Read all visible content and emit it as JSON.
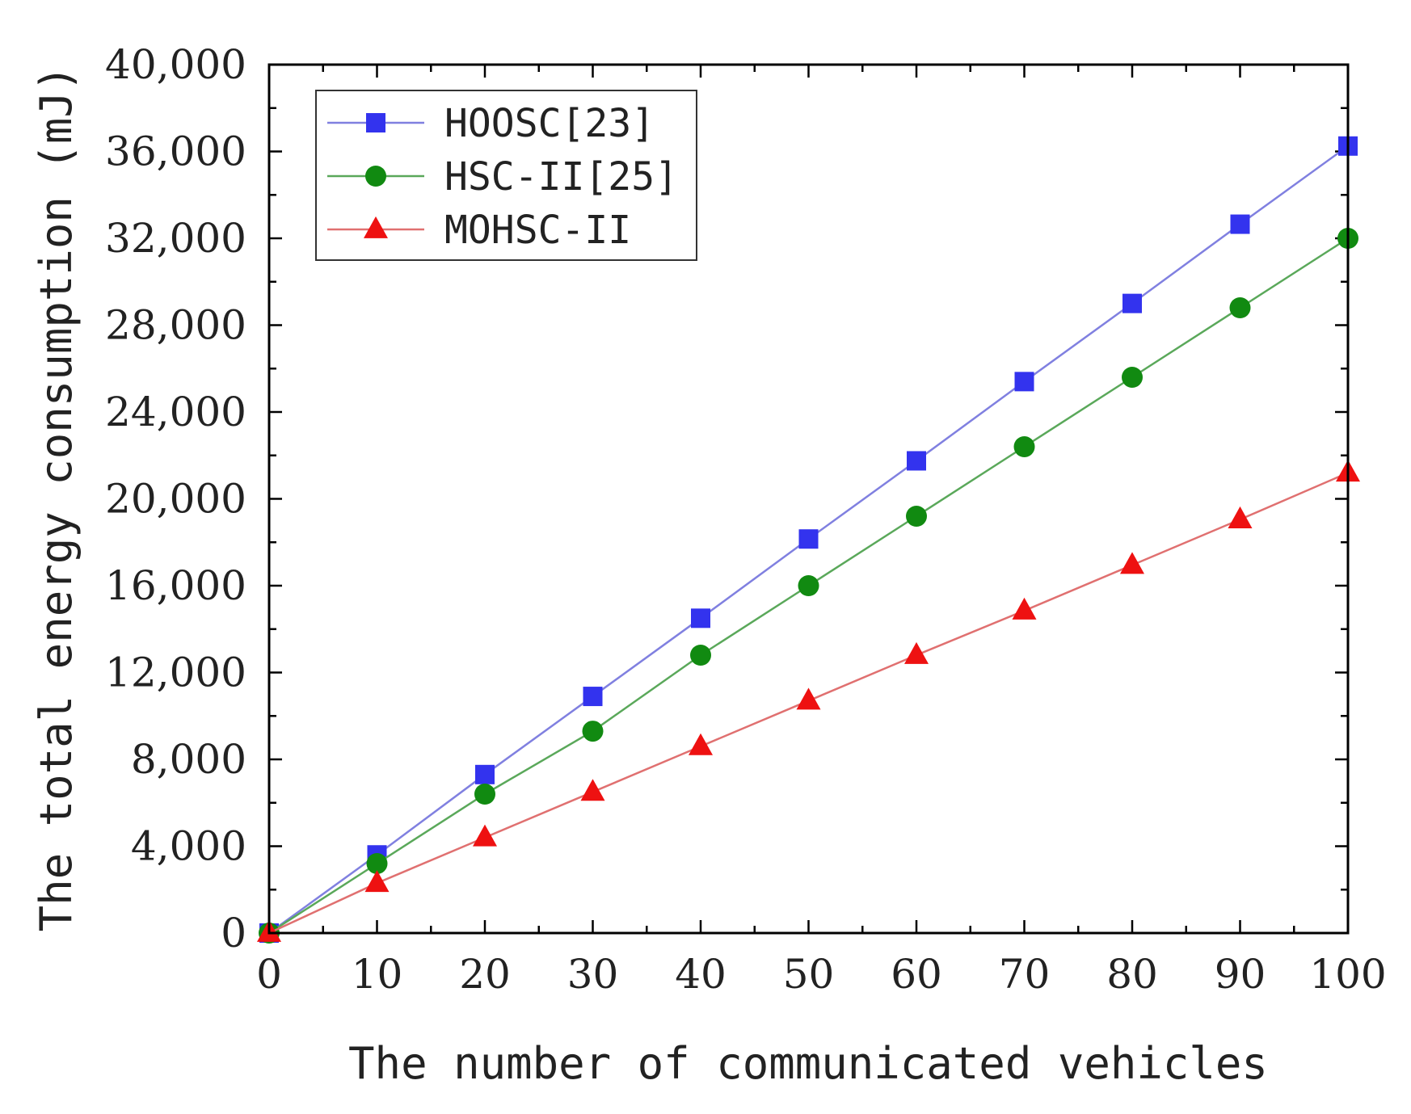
{
  "chart_data": {
    "type": "line",
    "title": "",
    "xlabel": "The number of communicated vehicles",
    "ylabel": "The total energy consumption (mJ)",
    "x": [
      0,
      10,
      20,
      30,
      40,
      50,
      60,
      70,
      80,
      90,
      100
    ],
    "xlim": [
      0,
      100
    ],
    "ylim": [
      0,
      40000
    ],
    "x_ticks": [
      0,
      10,
      20,
      30,
      40,
      50,
      60,
      70,
      80,
      90,
      100
    ],
    "x_tick_labels": [
      "0",
      "10",
      "20",
      "30",
      "40",
      "50",
      "60",
      "70",
      "80",
      "90",
      "100"
    ],
    "y_ticks": [
      0,
      4000,
      8000,
      12000,
      16000,
      20000,
      24000,
      28000,
      32000,
      36000,
      40000
    ],
    "y_tick_labels": [
      "0",
      "4,000",
      "8,000",
      "12,000",
      "16,000",
      "20,000",
      "24,000",
      "28,000",
      "32,000",
      "36,000",
      "40,000"
    ],
    "grid": false,
    "legend_position": "top-left",
    "series": [
      {
        "name": "HOOSC[23]",
        "marker": "square",
        "color": "#3333ee",
        "line_color": "#8080e0",
        "values": [
          0,
          3600,
          7300,
          10900,
          14500,
          18150,
          21750,
          25400,
          29000,
          32650,
          36250
        ]
      },
      {
        "name": "HSC-II[25]",
        "marker": "circle",
        "color": "#118a11",
        "line_color": "#5aa85a",
        "values": [
          0,
          3200,
          6400,
          9300,
          12800,
          16000,
          19200,
          22400,
          25600,
          28800,
          32000
        ]
      },
      {
        "name": "MOHSC-II",
        "marker": "triangle",
        "color": "#ee1111",
        "line_color": "#e07070",
        "values": [
          0,
          2300,
          4400,
          6500,
          8600,
          10700,
          12800,
          14850,
          16950,
          19050,
          21200
        ]
      }
    ]
  }
}
